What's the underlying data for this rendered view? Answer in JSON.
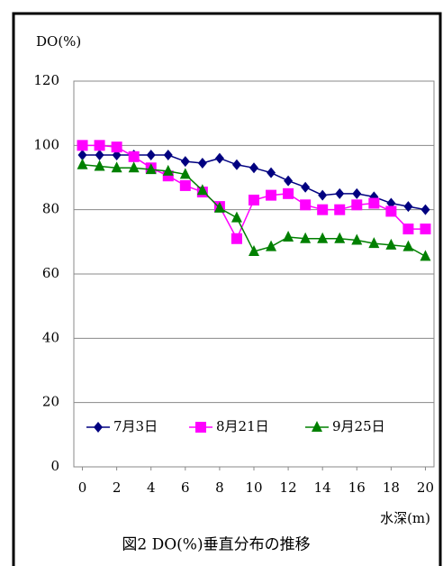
{
  "chart_data": {
    "type": "line",
    "y_label": "DO(%)",
    "x_label": "水深(m)",
    "caption": "図2 DO(%)垂直分布の推移",
    "x": [
      0,
      1,
      2,
      3,
      4,
      5,
      6,
      7,
      8,
      9,
      10,
      11,
      12,
      13,
      14,
      15,
      16,
      17,
      18,
      19,
      20
    ],
    "xlim": [
      -0.5,
      20.5
    ],
    "xticks": [
      0,
      2,
      4,
      6,
      8,
      10,
      12,
      14,
      16,
      18,
      20
    ],
    "ylim": [
      0,
      120
    ],
    "yticks": [
      0,
      20,
      40,
      60,
      80,
      100,
      120
    ],
    "grid": true,
    "legend": "bottom",
    "series": [
      {
        "name": "7月3日",
        "color": "#000080",
        "marker": "diamond",
        "values": [
          97,
          97,
          97,
          97,
          97,
          97,
          95,
          94.5,
          96,
          94,
          93,
          91.5,
          89,
          87,
          84.5,
          85,
          85,
          84,
          82,
          81,
          80
        ]
      },
      {
        "name": "8月21日",
        "color": "#ff00ff",
        "marker": "square",
        "values": [
          100,
          100,
          99.5,
          96.5,
          93,
          90.5,
          87.5,
          85.5,
          81,
          71,
          83,
          84.5,
          85,
          81.5,
          80,
          80,
          81.5,
          82,
          79.5,
          74,
          74
        ]
      },
      {
        "name": "9月25日",
        "color": "#008000",
        "marker": "triangle",
        "values": [
          94,
          93.5,
          93,
          93,
          92.5,
          92,
          91,
          86,
          80.5,
          77.5,
          67,
          68.5,
          71.5,
          71,
          71,
          71,
          70.5,
          69.5,
          69,
          68.5,
          65.5
        ]
      }
    ]
  }
}
